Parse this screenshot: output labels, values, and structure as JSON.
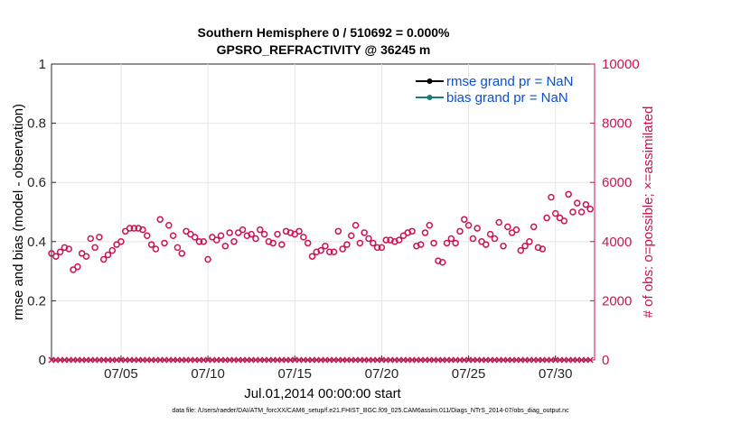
{
  "chart_data": {
    "type": "scatter",
    "title_line1": "Southern Hemisphere 0 / 510692 = 0.000%",
    "title_line2": "GPSRO_REFRACTIVITY @ 36245 m",
    "xlabel": "Jul.01,2014 00:00:00 start",
    "ylabel_left": "rmse and bias (model - observation)",
    "ylabel_right": "# of obs: o=possible; ×=assimilated",
    "footer": "data file: /Users/raeder/DAI/ATM_forcXX/CAM6_setup/f.e21.FHIST_BGC.f09_025.CAM6assim.011/Diags_NTrS_2014-07/obs_diag_output.nc",
    "xlim": [
      1.0,
      32.25
    ],
    "ylim_left": [
      0,
      1
    ],
    "ylim_right": [
      0,
      10000
    ],
    "x_ticks": [
      {
        "value": 5,
        "label": "07/05"
      },
      {
        "value": 10,
        "label": "07/10"
      },
      {
        "value": 15,
        "label": "07/15"
      },
      {
        "value": 20,
        "label": "07/20"
      },
      {
        "value": 25,
        "label": "07/25"
      },
      {
        "value": 30,
        "label": "07/30"
      }
    ],
    "y_left_ticks": [
      {
        "value": 0,
        "label": "0"
      },
      {
        "value": 0.2,
        "label": "0.2"
      },
      {
        "value": 0.4,
        "label": "0.4"
      },
      {
        "value": 0.6,
        "label": "0.6"
      },
      {
        "value": 0.8,
        "label": "0.8"
      },
      {
        "value": 1,
        "label": "1"
      }
    ],
    "y_right_ticks": [
      {
        "value": 0,
        "label": "0"
      },
      {
        "value": 2000,
        "label": "2000"
      },
      {
        "value": 4000,
        "label": "4000"
      },
      {
        "value": 6000,
        "label": "6000"
      },
      {
        "value": 8000,
        "label": "8000"
      },
      {
        "value": 10000,
        "label": "10000"
      }
    ],
    "legend": [
      {
        "label": "rmse grand pr = NaN",
        "color": "#000000"
      },
      {
        "label": "bias grand pr = NaN",
        "color": "#0f7f80"
      }
    ],
    "colors": {
      "obs": "#cc1155",
      "axis_right": "#cc1155",
      "legend_text": "#0b4fd6"
    },
    "series": [
      {
        "name": "possible obs count",
        "marker": "o",
        "x_start": 1.0,
        "x_step": 0.25,
        "values": [
          3600,
          3500,
          3650,
          3800,
          3750,
          3050,
          3150,
          3600,
          3500,
          4100,
          3800,
          4150,
          3400,
          3550,
          3700,
          3900,
          4000,
          4350,
          4450,
          4450,
          4450,
          4400,
          4200,
          3900,
          3750,
          4750,
          3950,
          4550,
          4200,
          3800,
          3600,
          4350,
          4250,
          4150,
          4000,
          4000,
          3400,
          4150,
          4050,
          4200,
          3850,
          4300,
          4000,
          4300,
          4400,
          4200,
          4250,
          4100,
          4400,
          4250,
          4000,
          3950,
          4250,
          3900,
          4350,
          4300,
          4250,
          4350,
          4150,
          3950,
          3500,
          3650,
          3700,
          3850,
          3650,
          3650,
          4350,
          3750,
          3900,
          4200,
          4550,
          3950,
          4300,
          4100,
          3950,
          3800,
          3800,
          4050,
          4050,
          4000,
          4050,
          4200,
          4300,
          4350,
          3850,
          3900,
          4300,
          4550,
          3950,
          3350,
          3300,
          3950,
          4100,
          3950,
          4350,
          4750,
          4550,
          4100,
          4450,
          4000,
          3900,
          4250,
          4100,
          4650,
          3850,
          4500,
          4300,
          4400,
          3700,
          3850,
          4000,
          4500,
          3800,
          3750,
          4800,
          5500,
          4950,
          4800,
          4700,
          5600,
          5000,
          5300,
          5000,
          5250,
          5100
        ]
      },
      {
        "name": "assimilated obs count",
        "marker": "x",
        "x_start": 1.0,
        "x_step": 0.25,
        "constant_value": 0,
        "count": 125
      }
    ]
  }
}
